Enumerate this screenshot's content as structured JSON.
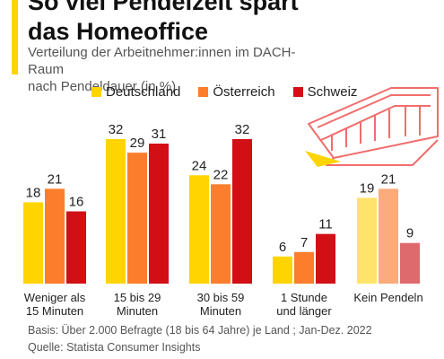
{
  "title_line1": "So viel Pendelzeit spart",
  "title_line2": "das Homeoffice",
  "subtitle_line1": "Verteilung der Arbeitnehmer:innen im DACH-Raum",
  "subtitle_line2": "nach Pendeldauer (in %)",
  "colors": {
    "accent": "#ffd400",
    "deutschland": "#ffd400",
    "oesterreich": "#fc7e2c",
    "schweiz": "#d10f15",
    "deutschland_light": "#ffe36b",
    "oesterreich_light": "#fcab7c",
    "schweiz_light": "#df6a6e",
    "tram": "#f26d6d"
  },
  "decoration": {
    "tram_icon": "tram-icon"
  },
  "chart_data": {
    "type": "bar",
    "categories": [
      [
        "Weniger als",
        "15 Minuten"
      ],
      [
        "15 bis 29",
        "Minuten"
      ],
      [
        "30 bis 59",
        "Minuten"
      ],
      [
        "1 Stunde",
        "und länger"
      ],
      [
        "Kein Pendeln"
      ]
    ],
    "series": [
      {
        "name": "Deutschland",
        "values": [
          18,
          32,
          24,
          6,
          19
        ]
      },
      {
        "name": "Österreich",
        "values": [
          21,
          29,
          22,
          7,
          21
        ]
      },
      {
        "name": "Schweiz",
        "values": [
          16,
          31,
          32,
          11,
          9
        ]
      }
    ],
    "ylim": [
      0,
      32
    ],
    "grid": false,
    "legend_position": "top",
    "highlight_last_category_lighter": true
  },
  "footer": {
    "basis": "Basis: Über 2.000 Befragte (18 bis 64 Jahre) je Land ; Jan-Dez. 2022",
    "source": "Quelle: Statista Consumer Insights"
  }
}
